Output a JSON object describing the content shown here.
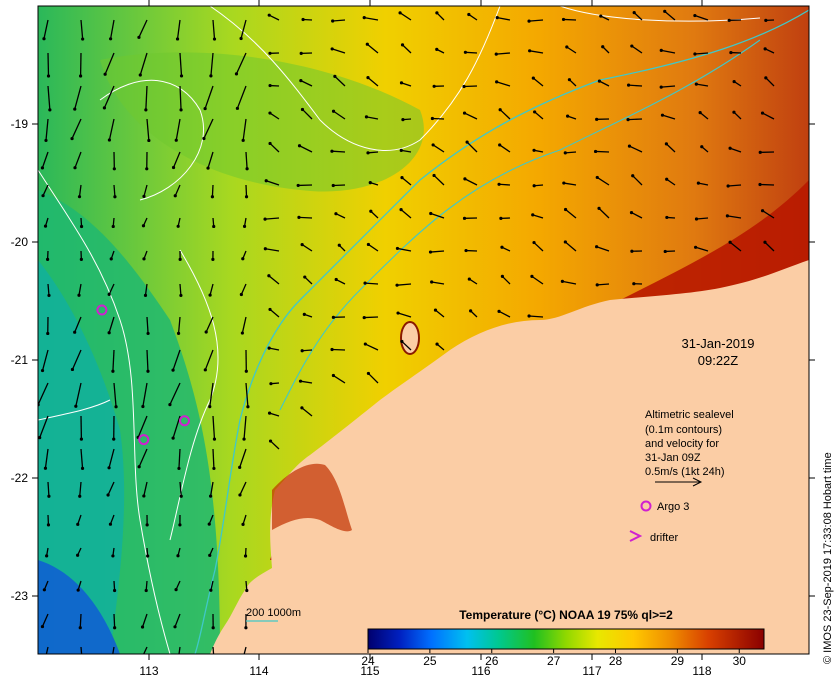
{
  "map": {
    "lon_ticks": [
      "113",
      "114",
      "115",
      "116",
      "117",
      "118"
    ],
    "lat_ticks": [
      "-19",
      "-20",
      "-21",
      "-22",
      "-23"
    ],
    "lon_range": [
      112.0,
      119.0
    ],
    "lat_range": [
      -23.5,
      -18.0
    ]
  },
  "date": {
    "line1": "31-Jan-2019",
    "line2": "09:22Z"
  },
  "legend": {
    "sealevel_lines": [
      "Altimetric sealevel",
      "(0.1m contours)",
      "and velocity for",
      "31-Jan 09Z",
      "0.5m/s (1kt 24h)"
    ],
    "argo_label": "Argo 3",
    "drifter_label": "drifter",
    "isobath_label": "200  1000m"
  },
  "colorbar": {
    "title": "Temperature (°C) NOAA 19 75% ql>=2",
    "ticks": [
      "24",
      "25",
      "26",
      "27",
      "28",
      "29",
      "30"
    ],
    "range": [
      24,
      30.4
    ]
  },
  "credit": "© IMOS 23-Sep-2019 17:33:08 Hobart time",
  "argo_floats": [
    {
      "lon": 112.58,
      "lat": -20.58
    },
    {
      "lon": 112.96,
      "lat": -21.68
    },
    {
      "lon": 113.33,
      "lat": -21.52
    }
  ],
  "colors": {
    "land": "#fbcda5",
    "frame": "#000000",
    "argo": "#d020d0",
    "isobath": "#40c8c8",
    "contour": "#ffffff"
  }
}
